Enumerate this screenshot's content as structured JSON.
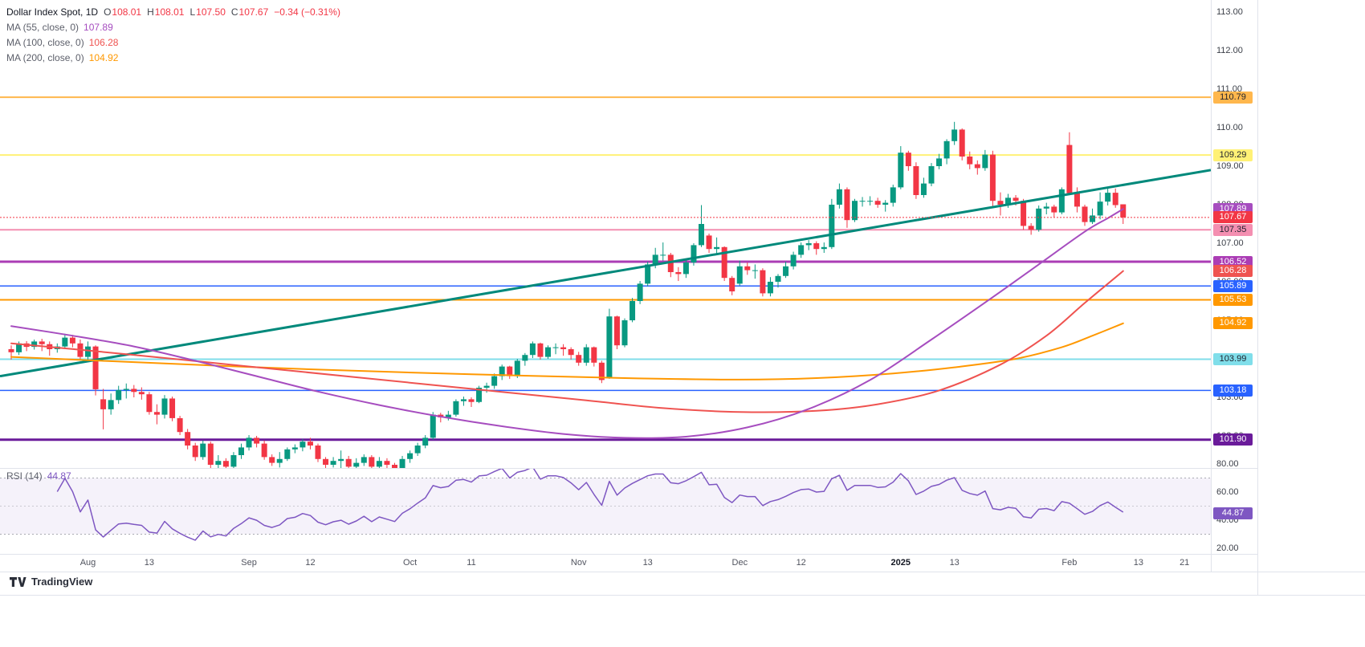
{
  "legend": {
    "symbol": "Dollar Index Spot, 1D",
    "ohlc": [
      {
        "label": "O",
        "value": "108.01"
      },
      {
        "label": "H",
        "value": "108.01"
      },
      {
        "label": "L",
        "value": "107.50"
      },
      {
        "label": "C",
        "value": "107.67"
      }
    ],
    "change": "−0.34 (−0.31%)",
    "values_color": "#f23645",
    "mas": [
      {
        "label": "MA (55, close, 0)",
        "value": "107.89",
        "color": "#a64dbf"
      },
      {
        "label": "MA (100, close, 0)",
        "value": "106.28",
        "color": "#ef5350"
      },
      {
        "label": "MA (200, close, 0)",
        "value": "104.92",
        "color": "#ff9800"
      }
    ],
    "rsi_label": "RSI (14)",
    "rsi_value": "44.87",
    "rsi_color": "#7e57c2"
  },
  "footer": {
    "brand": "TradingView"
  },
  "chart_data": {
    "type": "candlestick",
    "symbol": "Dollar Index Spot",
    "timeframe": "1D",
    "background": "#ffffff",
    "colors": {
      "up": "#089981",
      "down": "#f23645"
    },
    "last_bar": {
      "open": 108.01,
      "high": 108.01,
      "low": 107.5,
      "close": 107.67,
      "change": -0.34,
      "change_pct": -0.31
    },
    "candles": [
      [
        104.25,
        104.35,
        103.98,
        104.17
      ],
      [
        104.17,
        104.45,
        104.1,
        104.4
      ],
      [
        104.4,
        104.46,
        104.2,
        104.31
      ],
      [
        104.31,
        104.5,
        104.24,
        104.45
      ],
      [
        104.45,
        104.52,
        104.2,
        104.38
      ],
      [
        104.38,
        104.45,
        104.08,
        104.25
      ],
      [
        104.25,
        104.4,
        104.16,
        104.32
      ],
      [
        104.32,
        104.65,
        104.25,
        104.55
      ],
      [
        104.55,
        104.62,
        104.3,
        104.4
      ],
      [
        104.4,
        104.5,
        103.95,
        104.05
      ],
      [
        104.05,
        104.45,
        103.98,
        104.32
      ],
      [
        104.32,
        104.35,
        103.05,
        103.21
      ],
      [
        102.95,
        103.22,
        102.17,
        102.69
      ],
      [
        102.69,
        103.1,
        102.55,
        102.93
      ],
      [
        102.93,
        103.3,
        102.83,
        103.19
      ],
      [
        103.19,
        103.36,
        102.97,
        103.22
      ],
      [
        103.22,
        103.32,
        103.0,
        103.14
      ],
      [
        103.14,
        103.26,
        102.94,
        103.08
      ],
      [
        103.08,
        103.14,
        102.55,
        102.62
      ],
      [
        102.62,
        102.82,
        102.3,
        102.55
      ],
      [
        102.55,
        103.06,
        102.45,
        102.97
      ],
      [
        102.97,
        103.02,
        102.38,
        102.46
      ],
      [
        102.46,
        102.52,
        102.02,
        102.1
      ],
      [
        102.1,
        102.18,
        101.65,
        101.75
      ],
      [
        101.75,
        101.82,
        101.35,
        101.45
      ],
      [
        101.45,
        101.88,
        101.38,
        101.8
      ],
      [
        101.8,
        101.85,
        101.15,
        101.25
      ],
      [
        101.25,
        101.5,
        101.12,
        101.35
      ],
      [
        101.35,
        101.42,
        101.12,
        101.2
      ],
      [
        101.2,
        101.58,
        101.15,
        101.5
      ],
      [
        101.5,
        101.8,
        101.4,
        101.7
      ],
      [
        101.7,
        102.02,
        101.62,
        101.95
      ],
      [
        101.95,
        102.0,
        101.7,
        101.8
      ],
      [
        101.8,
        101.88,
        101.38,
        101.45
      ],
      [
        101.45,
        101.52,
        101.22,
        101.3
      ],
      [
        101.3,
        101.58,
        101.18,
        101.4
      ],
      [
        101.4,
        101.7,
        101.35,
        101.65
      ],
      [
        101.65,
        101.78,
        101.55,
        101.7
      ],
      [
        101.7,
        101.92,
        101.6,
        101.85
      ],
      [
        101.85,
        101.95,
        101.65,
        101.75
      ],
      [
        101.75,
        101.8,
        101.32,
        101.4
      ],
      [
        101.4,
        101.45,
        101.15,
        101.25
      ],
      [
        101.25,
        101.45,
        101.18,
        101.35
      ],
      [
        101.35,
        101.62,
        101.08,
        101.4
      ],
      [
        101.4,
        101.48,
        101.1,
        101.2
      ],
      [
        101.2,
        101.42,
        101.12,
        101.3
      ],
      [
        101.3,
        101.52,
        101.22,
        101.45
      ],
      [
        101.45,
        101.5,
        101.1,
        101.2
      ],
      [
        101.2,
        101.45,
        101.12,
        101.35
      ],
      [
        101.35,
        101.42,
        101.12,
        101.25
      ],
      [
        101.25,
        101.3,
        101.02,
        101.15
      ],
      [
        101.15,
        101.48,
        101.08,
        101.4
      ],
      [
        101.4,
        101.62,
        101.3,
        101.55
      ],
      [
        101.55,
        101.82,
        101.48,
        101.75
      ],
      [
        101.75,
        102.02,
        101.68,
        101.95
      ],
      [
        101.95,
        102.62,
        101.9,
        102.55
      ],
      [
        102.55,
        102.6,
        102.35,
        102.48
      ],
      [
        102.48,
        102.65,
        102.4,
        102.55
      ],
      [
        102.55,
        102.95,
        102.5,
        102.9
      ],
      [
        102.9,
        103.02,
        102.78,
        102.95
      ],
      [
        102.95,
        103.0,
        102.75,
        102.88
      ],
      [
        102.88,
        103.3,
        102.85,
        103.25
      ],
      [
        103.25,
        103.38,
        103.12,
        103.3
      ],
      [
        103.3,
        103.62,
        103.22,
        103.55
      ],
      [
        103.55,
        103.85,
        103.45,
        103.8
      ],
      [
        103.8,
        103.82,
        103.48,
        103.55
      ],
      [
        103.55,
        104.0,
        103.5,
        103.95
      ],
      [
        103.95,
        104.15,
        103.82,
        104.1
      ],
      [
        104.1,
        104.45,
        104.02,
        104.4
      ],
      [
        104.4,
        104.42,
        103.98,
        104.05
      ],
      [
        104.05,
        104.35,
        104.0,
        104.3
      ],
      [
        104.3,
        104.4,
        104.12,
        104.3
      ],
      [
        104.3,
        104.38,
        104.08,
        104.25
      ],
      [
        104.25,
        104.3,
        103.98,
        104.1
      ],
      [
        104.1,
        104.18,
        103.82,
        103.9
      ],
      [
        103.9,
        104.38,
        103.82,
        104.3
      ],
      [
        104.3,
        104.32,
        103.8,
        103.9
      ],
      [
        103.9,
        103.95,
        103.37,
        103.45
      ],
      [
        103.5,
        105.3,
        103.48,
        105.1
      ],
      [
        105.1,
        105.12,
        104.25,
        104.35
      ],
      [
        104.35,
        105.05,
        104.3,
        105.0
      ],
      [
        105.0,
        105.58,
        104.95,
        105.5
      ],
      [
        105.5,
        106.02,
        105.42,
        105.95
      ],
      [
        105.95,
        106.52,
        105.88,
        106.45
      ],
      [
        106.45,
        106.88,
        106.35,
        106.7
      ],
      [
        106.7,
        107.02,
        106.55,
        106.7
      ],
      [
        106.7,
        106.75,
        106.12,
        106.25
      ],
      [
        106.25,
        106.38,
        106.02,
        106.2
      ],
      [
        106.2,
        106.58,
        106.1,
        106.5
      ],
      [
        106.5,
        107.0,
        106.42,
        106.95
      ],
      [
        106.95,
        107.99,
        106.9,
        107.5
      ],
      [
        107.2,
        107.25,
        106.75,
        106.85
      ],
      [
        106.85,
        107.15,
        106.7,
        106.9
      ],
      [
        106.9,
        106.92,
        106.02,
        106.1
      ],
      [
        106.1,
        106.15,
        105.65,
        105.75
      ],
      [
        105.95,
        106.55,
        105.9,
        106.4
      ],
      [
        106.4,
        106.5,
        106.18,
        106.3
      ],
      [
        106.3,
        106.45,
        106.08,
        106.3
      ],
      [
        106.3,
        106.35,
        105.62,
        105.7
      ],
      [
        105.7,
        106.12,
        105.62,
        106.0
      ],
      [
        106.0,
        106.2,
        105.85,
        106.15
      ],
      [
        106.15,
        106.52,
        106.1,
        106.4
      ],
      [
        106.4,
        106.78,
        106.32,
        106.7
      ],
      [
        106.7,
        107.02,
        106.62,
        106.95
      ],
      [
        106.95,
        107.08,
        106.82,
        107.0
      ],
      [
        107.0,
        107.05,
        106.7,
        106.85
      ],
      [
        106.85,
        107.02,
        106.75,
        106.9
      ],
      [
        106.9,
        108.15,
        106.85,
        108.0
      ],
      [
        108.0,
        108.55,
        107.9,
        108.4
      ],
      [
        108.4,
        108.45,
        107.4,
        107.6
      ],
      [
        107.6,
        108.15,
        107.55,
        108.1
      ],
      [
        108.1,
        108.2,
        107.95,
        108.1
      ],
      [
        108.1,
        108.22,
        107.98,
        108.1
      ],
      [
        108.1,
        108.18,
        107.92,
        108.0
      ],
      [
        108.0,
        108.12,
        107.82,
        108.05
      ],
      [
        108.05,
        108.52,
        107.95,
        108.45
      ],
      [
        108.45,
        109.52,
        108.4,
        109.35
      ],
      [
        109.35,
        109.4,
        108.88,
        109.0
      ],
      [
        109.0,
        109.1,
        108.15,
        108.25
      ],
      [
        108.25,
        108.7,
        108.18,
        108.55
      ],
      [
        108.55,
        109.08,
        108.48,
        109.0
      ],
      [
        109.0,
        109.32,
        108.92,
        109.2
      ],
      [
        109.2,
        109.7,
        109.05,
        109.65
      ],
      [
        109.65,
        110.15,
        109.55,
        109.95
      ],
      [
        109.95,
        109.98,
        109.15,
        109.25
      ],
      [
        109.25,
        109.38,
        108.92,
        109.05
      ],
      [
        109.05,
        109.15,
        108.78,
        108.95
      ],
      [
        108.95,
        109.42,
        108.88,
        109.3
      ],
      [
        109.3,
        109.4,
        107.95,
        108.1
      ],
      [
        108.1,
        108.32,
        107.72,
        108.0
      ],
      [
        108.0,
        108.28,
        107.92,
        108.18
      ],
      [
        108.18,
        108.25,
        107.98,
        108.1
      ],
      [
        108.1,
        108.15,
        107.35,
        107.45
      ],
      [
        107.45,
        107.52,
        107.22,
        107.35
      ],
      [
        107.35,
        107.98,
        107.3,
        107.9
      ],
      [
        107.9,
        108.05,
        107.75,
        107.95
      ],
      [
        107.95,
        108.0,
        107.68,
        107.8
      ],
      [
        107.8,
        108.45,
        107.75,
        108.4
      ],
      [
        109.55,
        109.88,
        108.25,
        108.3
      ],
      [
        108.3,
        108.45,
        107.8,
        107.95
      ],
      [
        107.95,
        108.0,
        107.45,
        107.55
      ],
      [
        107.55,
        107.9,
        107.5,
        107.72
      ],
      [
        107.72,
        108.32,
        107.62,
        108.08
      ],
      [
        108.08,
        108.42,
        107.98,
        108.31
      ],
      [
        108.31,
        108.42,
        107.92,
        107.99
      ],
      [
        108.01,
        108.01,
        107.5,
        107.67
      ]
    ],
    "x_ticks": [
      {
        "i": 10,
        "label": "Aug"
      },
      {
        "i": 18,
        "label": "13"
      },
      {
        "i": 31,
        "label": "Sep"
      },
      {
        "i": 39,
        "label": "12"
      },
      {
        "i": 52,
        "label": "Oct"
      },
      {
        "i": 60,
        "label": "11"
      },
      {
        "i": 74,
        "label": "Nov"
      },
      {
        "i": 83,
        "label": "13"
      },
      {
        "i": 95,
        "label": "Dec"
      },
      {
        "i": 103,
        "label": "12"
      },
      {
        "i": 116,
        "label": "2025",
        "bold": true
      },
      {
        "i": 123,
        "label": "13"
      },
      {
        "i": 138,
        "label": "Feb"
      },
      {
        "i": 147,
        "label": "13"
      },
      {
        "i": 153,
        "label": "21"
      }
    ],
    "price_axis_ticks": [
      "113.00",
      "112.00",
      "111.00",
      "110.00",
      "109.00",
      "108.00",
      "107.00",
      "106.00",
      "105.00",
      "104.00",
      "103.00",
      "102.00"
    ],
    "levels": [
      {
        "label": "110.79",
        "price": 110.79,
        "color": "#ffb74d",
        "width": 2,
        "badge_bg": "#ffb74d",
        "badge_fg": "#1e222d"
      },
      {
        "label": "109.29",
        "price": 109.29,
        "color": "#fff176",
        "width": 2,
        "badge_bg": "#fff176",
        "badge_fg": "#1e222d"
      },
      {
        "label": "107.35",
        "price": 107.35,
        "color": "#f48fb1",
        "width": 2,
        "badge_bg": "#f48fb1",
        "badge_fg": "#1e222d"
      },
      {
        "label": "106.52",
        "price": 106.52,
        "color": "#ab3db5",
        "width": 3,
        "badge_bg": "#ab3db5",
        "badge_fg": "#ffffff"
      },
      {
        "label": "105.89",
        "price": 105.89,
        "color": "#2962ff",
        "width": 1.5,
        "badge_bg": "#2962ff",
        "badge_fg": "#ffffff"
      },
      {
        "label": "105.53",
        "price": 105.53,
        "color": "#ff9800",
        "width": 2,
        "badge_bg": "#ff9800",
        "badge_fg": "#ffffff"
      },
      {
        "label": "103.99",
        "price": 103.99,
        "color": "#80deea",
        "width": 2,
        "badge_bg": "#80deea",
        "badge_fg": "#1e222d"
      },
      {
        "label": "103.18",
        "price": 103.18,
        "color": "#2962ff",
        "width": 1.5,
        "badge_bg": "#2962ff",
        "badge_fg": "#ffffff"
      },
      {
        "label": "101.90",
        "price": 101.9,
        "color": "#6a1b9a",
        "width": 3,
        "badge_bg": "#6a1b9a",
        "badge_fg": "#ffffff"
      }
    ],
    "current_price": {
      "label": "107.67",
      "price": 107.67,
      "color": "#f23645"
    },
    "moving_averages": [
      {
        "name": "MA 55",
        "value": 107.89,
        "color": "#a64dbf",
        "badge_label": "107.89",
        "points": [
          [
            0,
            104.85
          ],
          [
            8,
            104.6
          ],
          [
            16,
            104.32
          ],
          [
            24,
            103.95
          ],
          [
            32,
            103.55
          ],
          [
            40,
            103.15
          ],
          [
            48,
            102.8
          ],
          [
            56,
            102.5
          ],
          [
            64,
            102.25
          ],
          [
            72,
            102.05
          ],
          [
            80,
            101.95
          ],
          [
            88,
            101.98
          ],
          [
            96,
            102.22
          ],
          [
            104,
            102.7
          ],
          [
            112,
            103.45
          ],
          [
            120,
            104.5
          ],
          [
            128,
            105.6
          ],
          [
            134,
            106.45
          ],
          [
            140,
            107.3
          ],
          [
            143,
            107.65
          ],
          [
            145,
            107.89
          ]
        ]
      },
      {
        "name": "MA 100",
        "value": 106.28,
        "color": "#ef5350",
        "badge_label": "106.28",
        "points": [
          [
            0,
            104.4
          ],
          [
            15,
            104.12
          ],
          [
            30,
            103.82
          ],
          [
            45,
            103.52
          ],
          [
            60,
            103.22
          ],
          [
            75,
            102.92
          ],
          [
            85,
            102.72
          ],
          [
            95,
            102.62
          ],
          [
            105,
            102.65
          ],
          [
            113,
            102.82
          ],
          [
            121,
            103.18
          ],
          [
            129,
            103.85
          ],
          [
            135,
            104.6
          ],
          [
            140,
            105.45
          ],
          [
            145,
            106.28
          ]
        ]
      },
      {
        "name": "MA 200",
        "value": 104.92,
        "color": "#ff9800",
        "badge_label": "104.92",
        "points": [
          [
            0,
            104.05
          ],
          [
            20,
            103.88
          ],
          [
            40,
            103.72
          ],
          [
            60,
            103.6
          ],
          [
            80,
            103.5
          ],
          [
            95,
            103.46
          ],
          [
            105,
            103.5
          ],
          [
            115,
            103.62
          ],
          [
            123,
            103.78
          ],
          [
            131,
            104.0
          ],
          [
            137,
            104.3
          ],
          [
            141,
            104.6
          ],
          [
            145,
            104.92
          ]
        ]
      }
    ],
    "trendline": {
      "color": "#00897b",
      "width": 3,
      "from_price": 103.55,
      "to_price": 108.9
    },
    "rsi": {
      "period": 14,
      "last": 44.87,
      "color": "#7e57c2",
      "upper_band": 70,
      "middle_band": 50,
      "lower_band": 30,
      "band_fill": "rgba(126,87,194,0.08)",
      "band_line_color": "#9598a1",
      "axis_ticks": [
        "80.00",
        "60.00",
        "40.00",
        "20.00"
      ],
      "badge_label": "44.87",
      "badge_bg": "#7e57c2",
      "badge_fg": "#ffffff"
    }
  }
}
